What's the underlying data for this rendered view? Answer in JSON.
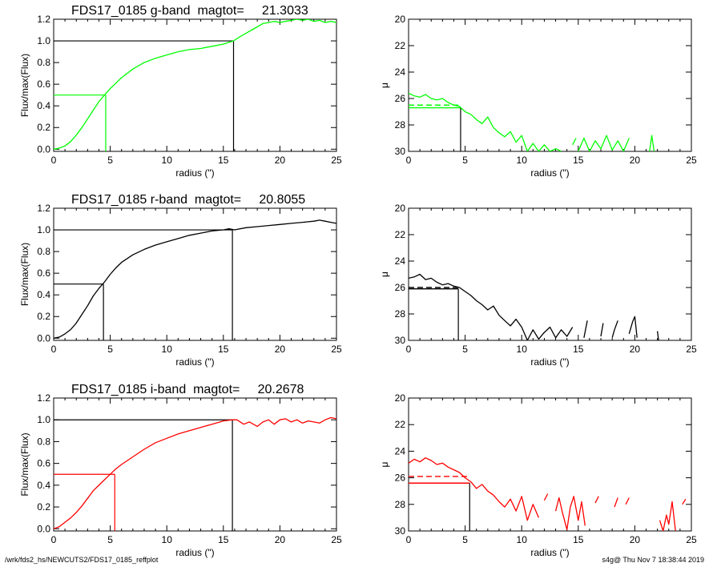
{
  "footer": {
    "left": "/wrk/fds2_hs/NEWCUTS2/FDS17_0185_reffplot",
    "right": "s4g@  Thu Nov  7 18:38:44 2019"
  },
  "colors": {
    "g": "#00ff00",
    "r": "#000000",
    "i": "#ff0000",
    "axis": "#000000"
  },
  "chart_data": [
    {
      "id": "g-growth",
      "type": "line",
      "title": "FDS17_0185 g-band  magtot=     21.3033",
      "xlabel": "radius (\")",
      "ylabel": "Flux/max(Flux)",
      "xlim": [
        0,
        25
      ],
      "ylim": [
        -0.02,
        1.2
      ],
      "xticks": [
        0,
        5,
        10,
        15,
        20,
        25
      ],
      "yticks": [
        0.0,
        0.2,
        0.4,
        0.6,
        0.8,
        1.0,
        1.2
      ],
      "color": "g",
      "series": [
        {
          "x": [
            0,
            0.5,
            1,
            1.5,
            2,
            2.5,
            3,
            3.5,
            4,
            4.5,
            5,
            5.5,
            6,
            7,
            8,
            9,
            10,
            11,
            12,
            13,
            14,
            15,
            15.9,
            16.5,
            17,
            17.5,
            18,
            18.5,
            19,
            19.5,
            20,
            20.5,
            21,
            21.5,
            22,
            22.5,
            23,
            23.5,
            24,
            24.5,
            25
          ],
          "y": [
            0.0,
            0.01,
            0.03,
            0.07,
            0.13,
            0.2,
            0.28,
            0.36,
            0.44,
            0.5,
            0.56,
            0.61,
            0.66,
            0.74,
            0.8,
            0.84,
            0.87,
            0.9,
            0.92,
            0.93,
            0.95,
            0.97,
            1.0,
            1.04,
            1.07,
            1.1,
            1.13,
            1.16,
            1.17,
            1.18,
            1.17,
            1.18,
            1.19,
            1.2,
            1.19,
            1.2,
            1.18,
            1.19,
            1.17,
            1.18,
            1.17
          ]
        }
      ],
      "guides": {
        "half": {
          "x": 4.6,
          "y": 0.5,
          "color": "g"
        },
        "total": {
          "x": 15.9,
          "y": 1.0,
          "color": "axis"
        }
      }
    },
    {
      "id": "g-mu",
      "type": "line",
      "ylabel": "μ",
      "xlabel": "radius (\")",
      "xlim": [
        0,
        25
      ],
      "ylim": [
        20,
        30
      ],
      "xticks": [
        0,
        5,
        10,
        15,
        20,
        25
      ],
      "yticks": [
        20,
        22,
        24,
        26,
        28,
        30
      ],
      "reversed_y": true,
      "color": "g",
      "series": [
        {
          "segments": [
            {
              "x": [
                0,
                0.5,
                1,
                1.5,
                2,
                2.5,
                3,
                3.5,
                4,
                4.5,
                5,
                5.5,
                6,
                6.5,
                7,
                7.5,
                8,
                8.5,
                9,
                9.5,
                10,
                10.5,
                11,
                11.5,
                12,
                12.5,
                13,
                13.5
              ],
              "y": [
                25.6,
                25.8,
                25.9,
                25.7,
                26.0,
                26.1,
                26.0,
                26.3,
                26.5,
                26.6,
                27.0,
                27.2,
                27.6,
                27.9,
                27.4,
                28.2,
                28.6,
                28.9,
                28.5,
                29.3,
                28.8,
                30.0,
                29.4,
                30.0,
                29.5,
                30.0,
                29.8,
                30.0
              ]
            },
            {
              "x": [
                14.5,
                14.8
              ],
              "y": [
                29.5,
                29.0
              ]
            },
            {
              "x": [
                15,
                15.5,
                16,
                16.5,
                17,
                17.5,
                18,
                18.5,
                19,
                19.5
              ],
              "y": [
                30.0,
                29.0,
                30.0,
                29.2,
                29.8,
                28.8,
                29.9,
                29.2,
                30.0,
                29.0
              ]
            },
            {
              "x": [
                21.3,
                21.5,
                21.7
              ],
              "y": [
                30.0,
                28.8,
                30.0
              ]
            }
          ]
        }
      ],
      "guides": {
        "dashed": {
          "y": 26.5,
          "x": 4.6,
          "color": "g"
        },
        "solid": {
          "y": 26.7,
          "x": 4.6,
          "color": "g"
        },
        "vline": {
          "x": 4.6,
          "color": "axis"
        }
      }
    },
    {
      "id": "r-growth",
      "type": "line",
      "title": "FDS17_0185 r-band  magtot=     20.8055",
      "xlabel": "radius (\")",
      "ylabel": "Flux/max(Flux)",
      "xlim": [
        0,
        25
      ],
      "ylim": [
        -0.02,
        1.2
      ],
      "xticks": [
        0,
        5,
        10,
        15,
        20,
        25
      ],
      "yticks": [
        0.0,
        0.2,
        0.4,
        0.6,
        0.8,
        1.0,
        1.2
      ],
      "color": "r",
      "series": [
        {
          "x": [
            0,
            0.5,
            1,
            1.5,
            2,
            2.5,
            3,
            3.5,
            4,
            4.5,
            5,
            5.5,
            6,
            7,
            8,
            9,
            10,
            11,
            12,
            13,
            14,
            15,
            15.5,
            16,
            17,
            18,
            19,
            20,
            21,
            22,
            23,
            23.5,
            24,
            24.5,
            25
          ],
          "y": [
            0.0,
            0.01,
            0.04,
            0.08,
            0.14,
            0.22,
            0.3,
            0.39,
            0.46,
            0.52,
            0.59,
            0.65,
            0.7,
            0.77,
            0.82,
            0.86,
            0.89,
            0.92,
            0.95,
            0.97,
            0.99,
            1.0,
            1.01,
            1.0,
            1.02,
            1.03,
            1.04,
            1.05,
            1.06,
            1.07,
            1.08,
            1.09,
            1.08,
            1.07,
            1.06
          ]
        }
      ],
      "guides": {
        "half": {
          "x": 4.4,
          "y": 0.5,
          "color": "r"
        },
        "total": {
          "x": 15.8,
          "y": 1.0,
          "color": "r"
        }
      }
    },
    {
      "id": "r-mu",
      "type": "line",
      "ylabel": "μ",
      "xlabel": "radius (\")",
      "xlim": [
        0,
        25
      ],
      "ylim": [
        20,
        30
      ],
      "xticks": [
        0,
        5,
        10,
        15,
        20,
        25
      ],
      "yticks": [
        20,
        22,
        24,
        26,
        28,
        30
      ],
      "reversed_y": true,
      "color": "r",
      "series": [
        {
          "segments": [
            {
              "x": [
                0,
                0.5,
                1,
                1.5,
                2,
                2.5,
                3,
                3.5,
                4,
                4.5,
                5,
                5.5,
                6,
                6.5,
                7,
                7.5,
                8,
                8.5,
                9,
                9.5,
                10,
                10.5,
                11,
                11.5,
                12,
                12.5,
                13,
                13.5,
                14,
                14.5
              ],
              "y": [
                25.3,
                25.2,
                25.0,
                25.4,
                25.3,
                25.6,
                25.8,
                25.7,
                25.9,
                26.0,
                26.3,
                26.6,
                27.0,
                27.3,
                27.7,
                27.4,
                28.1,
                28.5,
                28.9,
                28.4,
                29.0,
                30.0,
                29.2,
                29.9,
                29.4,
                29.0,
                29.8,
                29.2,
                29.7,
                29.0
              ]
            },
            {
              "x": [
                15.5,
                15.8
              ],
              "y": [
                29.8,
                28.5
              ]
            },
            {
              "x": [
                17,
                17.2
              ],
              "y": [
                29.7,
                28.7
              ]
            },
            {
              "x": [
                18,
                18.2,
                18.5
              ],
              "y": [
                29.8,
                29.2,
                28.5
              ]
            },
            {
              "x": [
                19.5,
                19.8,
                20,
                20.2
              ],
              "y": [
                29.5,
                28.6,
                28.2,
                29.8
              ]
            },
            {
              "x": [
                22,
                22.1
              ],
              "y": [
                29.3,
                30.0
              ]
            }
          ]
        }
      ],
      "guides": {
        "dashed": {
          "y": 26.0,
          "x": 4.4,
          "color": "r"
        },
        "solid": {
          "y": 26.1,
          "x": 4.4,
          "color": "r"
        },
        "vline": {
          "x": 4.4,
          "color": "r"
        }
      }
    },
    {
      "id": "i-growth",
      "type": "line",
      "title": "FDS17_0185 i-band  magtot=     20.2678",
      "xlabel": "radius (\")",
      "ylabel": "Flux/max(Flux)",
      "xlim": [
        0,
        25
      ],
      "ylim": [
        -0.02,
        1.2
      ],
      "xticks": [
        0,
        5,
        10,
        15,
        20,
        25
      ],
      "yticks": [
        0.0,
        0.2,
        0.4,
        0.6,
        0.8,
        1.0,
        1.2
      ],
      "color": "i",
      "series": [
        {
          "x": [
            0,
            0.5,
            1,
            1.5,
            2,
            2.5,
            3,
            3.5,
            4,
            4.5,
            5,
            5.5,
            6,
            7,
            8,
            9,
            10,
            11,
            12,
            13,
            14,
            15,
            15.8,
            16.2,
            16.8,
            17.3,
            18,
            18.5,
            19,
            19.5,
            20,
            20.5,
            21,
            21.5,
            22,
            22.5,
            23,
            23.5,
            24,
            24.5,
            25
          ],
          "y": [
            0.0,
            0.02,
            0.06,
            0.1,
            0.15,
            0.21,
            0.28,
            0.35,
            0.4,
            0.45,
            0.5,
            0.55,
            0.59,
            0.66,
            0.73,
            0.79,
            0.83,
            0.87,
            0.9,
            0.93,
            0.96,
            0.99,
            1.0,
            1.0,
            0.96,
            0.98,
            0.94,
            0.98,
            1.0,
            0.96,
            1.0,
            1.01,
            0.98,
            1.0,
            0.97,
            0.99,
            0.98,
            0.97,
            1.0,
            1.02,
            1.01
          ]
        }
      ],
      "guides": {
        "half": {
          "x": 5.4,
          "y": 0.5,
          "color": "i"
        },
        "total": {
          "x": 15.8,
          "y": 1.0,
          "color": "axis"
        }
      }
    },
    {
      "id": "i-mu",
      "type": "line",
      "ylabel": "μ",
      "xlabel": "radius (\")",
      "xlim": [
        0,
        25
      ],
      "ylim": [
        20,
        30
      ],
      "xticks": [
        0,
        5,
        10,
        15,
        20,
        25
      ],
      "yticks": [
        20,
        22,
        24,
        26,
        28,
        30
      ],
      "reversed_y": true,
      "color": "i",
      "series": [
        {
          "segments": [
            {
              "x": [
                0,
                0.5,
                1,
                1.5,
                2,
                2.5,
                3,
                3.5,
                4,
                4.5,
                5,
                5.5,
                6,
                6.5,
                7,
                7.5,
                8,
                8.5,
                9,
                9.5,
                10,
                10.5,
                11,
                11.5
              ],
              "y": [
                24.9,
                24.6,
                24.8,
                24.5,
                24.7,
                25.0,
                24.9,
                25.2,
                25.4,
                25.6,
                26.0,
                26.3,
                26.8,
                26.5,
                27.0,
                27.3,
                27.8,
                28.2,
                27.6,
                28.5,
                27.4,
                29.2,
                28.0,
                29.0
              ]
            },
            {
              "x": [
                12,
                12.3
              ],
              "y": [
                27.7,
                27.2
              ]
            },
            {
              "x": [
                13,
                13.3,
                13.6,
                14,
                14.3,
                14.6,
                15,
                15.3,
                15.6
              ],
              "y": [
                28.5,
                27.5,
                28.6,
                29.9,
                28.2,
                27.4,
                29.2,
                27.8,
                29.6
              ]
            },
            {
              "x": [
                16.5,
                16.8
              ],
              "y": [
                27.9,
                27.4
              ]
            },
            {
              "x": [
                18.2,
                18.5
              ],
              "y": [
                28.2,
                27.5
              ]
            },
            {
              "x": [
                19.2,
                19.5
              ],
              "y": [
                28.0,
                27.5
              ]
            },
            {
              "x": [
                22.2,
                22.5,
                22.8,
                23.0,
                23.3,
                23.6
              ],
              "y": [
                29.2,
                30.0,
                28.8,
                29.5,
                27.8,
                30.0
              ]
            },
            {
              "x": [
                24.2,
                24.5
              ],
              "y": [
                28.0,
                27.6
              ]
            }
          ]
        }
      ],
      "guides": {
        "dashed": {
          "y": 25.9,
          "x": 5.4,
          "color": "i"
        },
        "solid": {
          "y": 26.4,
          "x": 5.4,
          "color": "i"
        },
        "vline": {
          "x": 5.4,
          "color": "axis"
        }
      }
    }
  ]
}
